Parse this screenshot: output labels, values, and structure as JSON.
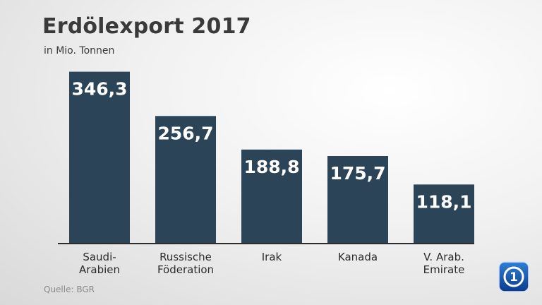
{
  "header": {
    "title": "Erdölexport 2017",
    "subtitle": "in Mio. Tonnen"
  },
  "footer": {
    "source": "Quelle: BGR",
    "logo_icon": "tagesschau-logo-icon"
  },
  "colors": {
    "bar": "#2c4457",
    "value_text": "#ffffff"
  },
  "chart_data": {
    "type": "bar",
    "title": "Erdölexport 2017",
    "subtitle": "in Mio. Tonnen",
    "categories": [
      [
        "Saudi-",
        "Arabien"
      ],
      [
        "Russische",
        "Föderation"
      ],
      [
        "Irak"
      ],
      [
        "Kanada"
      ],
      [
        "V. Arab.",
        "Emirate"
      ]
    ],
    "values": [
      346.3,
      256.7,
      188.8,
      175.7,
      118.1
    ],
    "value_labels": [
      "346,3",
      "256,7",
      "188,8",
      "175,7",
      "118,1"
    ],
    "ylim": [
      0,
      360
    ],
    "grid": false,
    "legend": false
  }
}
